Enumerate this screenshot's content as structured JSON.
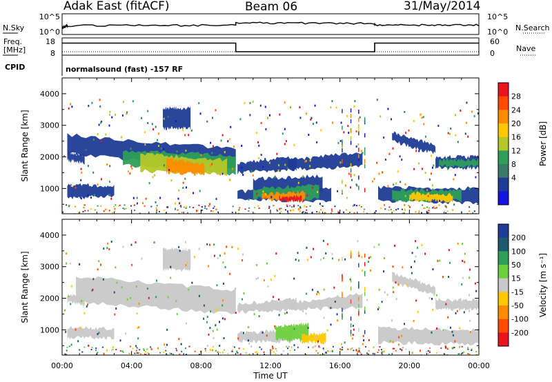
{
  "header": {
    "radar_title": "Adak East (fitACF)",
    "beam": "Beam 06",
    "date": "31/May/2014"
  },
  "param_panels": {
    "nsky_label": "N.Sky",
    "nsearch_label": "N.Search",
    "noise_ticks": [
      "10^5",
      "10^0"
    ],
    "freq_label": "Freq.",
    "freq_unit": "[MHz]",
    "freq_ticks": [
      "18",
      "8"
    ],
    "nave_label": "Nave",
    "nave_ticks": [
      "60",
      "0"
    ],
    "cpid_label": "CPID",
    "cpid_text": "normalsound (fast) -157 RF"
  },
  "time_axis": {
    "ticks": [
      "00:00",
      "04:00",
      "08:00",
      "12:00",
      "16:00",
      "20:00",
      "00:00"
    ],
    "label": "Time UT"
  },
  "power_colorbar": {
    "label": "Power [dB]",
    "ticks": [
      "28",
      "24",
      "20",
      "16",
      "12",
      "8",
      "4"
    ],
    "colors": [
      "#e8141e",
      "#ff4a00",
      "#ff8c00",
      "#ffc800",
      "#b4c828",
      "#2e9e58",
      "#3a7a6a",
      "#1e3c96",
      "#1414e0"
    ]
  },
  "velocity_colorbar": {
    "label": "Velocity [m s⁻¹]",
    "ticks": [
      "200",
      "100",
      "50",
      "15",
      "-15",
      "-50",
      "-100",
      "-200"
    ],
    "colors": [
      "#1e3c96",
      "#1e5a6e",
      "#2e9e58",
      "#6ecf3c",
      "#c8c8c8",
      "#ffc800",
      "#ff8c00",
      "#ff4a00",
      "#e8141e"
    ]
  },
  "chart_data": [
    {
      "type": "heatmap",
      "name": "power",
      "xlabel": "Time UT",
      "ylabel": "Slant Range [km]",
      "x_unit": "hours UT",
      "xlim": [
        0,
        24
      ],
      "ylim": [
        200,
        4500
      ],
      "yticks": [
        "4000",
        "3000",
        "2000",
        "1000"
      ],
      "bands": [
        {
          "t": [
            0.3,
            10.0
          ],
          "r0": [
            2300,
            1850
          ],
          "r1": [
            2700,
            2250
          ],
          "r0e": [
            2100,
            1600
          ],
          "r1e": [
            2400,
            2200
          ],
          "c": "#1e3c96"
        },
        {
          "t": [
            3.5,
            10.0
          ],
          "r0": [
            1950,
            1700
          ],
          "r1": [
            2200,
            2050
          ],
          "r0e": [
            1750,
            1450
          ],
          "r1e": [
            2050,
            1950
          ],
          "c": "#2e9e58"
        },
        {
          "t": [
            4.5,
            9.5
          ],
          "r0": [
            1900,
            1650
          ],
          "r1": [
            2100,
            1900
          ],
          "r0e": [
            1550,
            1450
          ],
          "r1e": [
            1750,
            1700
          ],
          "c": "#b4c828"
        },
        {
          "t": [
            6.0,
            8.2
          ],
          "r0": [
            1800,
            1600
          ],
          "r1": [
            1950,
            1750
          ],
          "r0e": [
            1500,
            1450
          ],
          "r1e": [
            1650,
            1600
          ],
          "c": "#ff8c00"
        },
        {
          "t": [
            0.3,
            1.3
          ],
          "r0": [
            1900,
            1800
          ],
          "r1": [
            2150,
            2050
          ],
          "r0e": [
            1900,
            1800
          ],
          "r1e": [
            2150,
            2050
          ],
          "c": "#1e3c96"
        },
        {
          "t": [
            0.3,
            3.0
          ],
          "r0": [
            700,
            750
          ],
          "r1": [
            1100,
            1100
          ],
          "r0e": [
            700,
            750
          ],
          "r1e": [
            1100,
            1100
          ],
          "c": "#1e3c96"
        },
        {
          "t": [
            10.1,
            15.5
          ],
          "r0": [
            650,
            600
          ],
          "r1": [
            900,
            1000
          ],
          "r0e": [
            650,
            600
          ],
          "r1e": [
            900,
            1000
          ],
          "c": "#1e3c96"
        },
        {
          "t": [
            11.0,
            15.0
          ],
          "r0": [
            900,
            900
          ],
          "r1": [
            1300,
            1400
          ],
          "r0e": [
            900,
            900
          ],
          "r1e": [
            1150,
            1000
          ],
          "c": "#1e3c96"
        },
        {
          "t": [
            11.0,
            14.8
          ],
          "r0": [
            700,
            650
          ],
          "r1": [
            1000,
            1100
          ],
          "r0e": [
            700,
            650
          ],
          "r1e": [
            900,
            950
          ],
          "c": "#2e9e58"
        },
        {
          "t": [
            11.5,
            14.0
          ],
          "r0": [
            650,
            620
          ],
          "r1": [
            820,
            900
          ],
          "r0e": [
            650,
            620
          ],
          "r1e": [
            820,
            900
          ],
          "c": "#ff8c00"
        },
        {
          "t": [
            12.5,
            13.8
          ],
          "r0": [
            620,
            600
          ],
          "r1": [
            720,
            760
          ],
          "r0e": [
            620,
            600
          ],
          "r1e": [
            720,
            760
          ],
          "c": "#e8141e"
        },
        {
          "t": [
            10.1,
            13.5
          ],
          "r0": [
            1500,
            1600
          ],
          "r1": [
            1800,
            2000
          ],
          "r0e": [
            1500,
            1600
          ],
          "r1e": [
            1800,
            2000
          ],
          "c": "#1e3c96"
        },
        {
          "t": [
            13.0,
            17.3
          ],
          "r0": [
            1600,
            1700
          ],
          "r1": [
            1900,
            2150
          ],
          "r0e": [
            1600,
            1700
          ],
          "r1e": [
            1900,
            2150
          ],
          "c": "#1e3c96"
        },
        {
          "t": [
            18.2,
            24.0
          ],
          "r0": [
            600,
            550
          ],
          "r1": [
            1050,
            1000
          ],
          "r0e": [
            600,
            550
          ],
          "r1e": [
            1050,
            1000
          ],
          "c": "#1e3c96"
        },
        {
          "t": [
            19.0,
            23.0
          ],
          "r0": [
            650,
            600
          ],
          "r1": [
            950,
            950
          ],
          "r0e": [
            650,
            600
          ],
          "r1e": [
            950,
            950
          ],
          "c": "#2e9e58"
        },
        {
          "t": [
            20.0,
            22.5
          ],
          "r0": [
            650,
            600
          ],
          "r1": [
            850,
            800
          ],
          "r0e": [
            650,
            600
          ],
          "r1e": [
            850,
            800
          ],
          "c": "#ffc800"
        },
        {
          "t": [
            19.0,
            21.5
          ],
          "r0": [
            2500,
            2100
          ],
          "r1": [
            2800,
            2350
          ],
          "r0e": [
            2500,
            2100
          ],
          "r1e": [
            2800,
            2350
          ],
          "c": "#1e3c96"
        },
        {
          "t": [
            21.5,
            24.0
          ],
          "r0": [
            1650,
            1650
          ],
          "r1": [
            2000,
            2000
          ],
          "r0e": [
            1650,
            1650
          ],
          "r1e": [
            2000,
            2000
          ],
          "c": "#1e3c96"
        },
        {
          "t": [
            21.7,
            24.0
          ],
          "r0": [
            1700,
            1700
          ],
          "r1": [
            1900,
            1900
          ],
          "r0e": [
            1700,
            1700
          ],
          "r1e": [
            1900,
            1900
          ],
          "c": "#2e9e58"
        },
        {
          "t": [
            5.8,
            7.4
          ],
          "r0": [
            3100,
            3100
          ],
          "r1": [
            3550,
            3550
          ],
          "r0e": [
            2900,
            2900
          ],
          "r1e": [
            3350,
            3350
          ],
          "c": "#1e3c96"
        }
      ]
    },
    {
      "type": "heatmap",
      "name": "velocity",
      "xlabel": "Time UT",
      "ylabel": "Slant Range [km]",
      "x_unit": "hours UT",
      "xlim": [
        0,
        24
      ],
      "ylim": [
        200,
        4500
      ],
      "yticks": [
        "4000",
        "3000",
        "2000",
        "1000"
      ],
      "bands": [
        {
          "t": [
            0.8,
            10.0
          ],
          "r0": [
            2300,
            1850
          ],
          "r1": [
            2700,
            2250
          ],
          "r0e": [
            1900,
            1500
          ],
          "r1e": [
            2400,
            2200
          ],
          "c": "#c8c8c8"
        },
        {
          "t": [
            0.3,
            1.3
          ],
          "r0": [
            1900,
            1800
          ],
          "r1": [
            2100,
            2050
          ],
          "r0e": [
            1900,
            1800
          ],
          "r1e": [
            2100,
            2050
          ],
          "c": "#c8c8c8"
        },
        {
          "t": [
            0.3,
            3.0
          ],
          "r0": [
            750,
            750
          ],
          "r1": [
            1050,
            1050
          ],
          "r0e": [
            750,
            750
          ],
          "r1e": [
            1050,
            1050
          ],
          "c": "#c8c8c8"
        },
        {
          "t": [
            10.1,
            13.2
          ],
          "r0": [
            650,
            600
          ],
          "r1": [
            900,
            1000
          ],
          "r0e": [
            650,
            600
          ],
          "r1e": [
            900,
            1000
          ],
          "c": "#c8c8c8"
        },
        {
          "t": [
            12.3,
            14.2
          ],
          "r0": [
            700,
            650
          ],
          "r1": [
            1100,
            1200
          ],
          "r0e": [
            700,
            650
          ],
          "r1e": [
            1100,
            1200
          ],
          "c": "#6ecf3c"
        },
        {
          "t": [
            13.8,
            15.2
          ],
          "r0": [
            600,
            600
          ],
          "r1": [
            850,
            900
          ],
          "r0e": [
            600,
            600
          ],
          "r1e": [
            850,
            900
          ],
          "c": "#ffc800"
        },
        {
          "t": [
            10.1,
            13.5
          ],
          "r0": [
            1550,
            1650
          ],
          "r1": [
            1800,
            2000
          ],
          "r0e": [
            1550,
            1650
          ],
          "r1e": [
            1800,
            2000
          ],
          "c": "#c8c8c8"
        },
        {
          "t": [
            13.0,
            17.3
          ],
          "r0": [
            1650,
            1700
          ],
          "r1": [
            1850,
            2150
          ],
          "r0e": [
            1650,
            1700
          ],
          "r1e": [
            1850,
            2150
          ],
          "c": "#c8c8c8"
        },
        {
          "t": [
            18.2,
            24.0
          ],
          "r0": [
            600,
            550
          ],
          "r1": [
            1050,
            1000
          ],
          "r0e": [
            600,
            550
          ],
          "r1e": [
            1050,
            1000
          ],
          "c": "#c8c8c8"
        },
        {
          "t": [
            19.0,
            21.5
          ],
          "r0": [
            2500,
            2100
          ],
          "r1": [
            2800,
            2350
          ],
          "r0e": [
            2500,
            2100
          ],
          "r1e": [
            2800,
            2350
          ],
          "c": "#c8c8c8"
        },
        {
          "t": [
            21.5,
            24.0
          ],
          "r0": [
            1650,
            1650
          ],
          "r1": [
            1950,
            1950
          ],
          "r0e": [
            1650,
            1650
          ],
          "r1e": [
            1950,
            1950
          ],
          "c": "#c8c8c8"
        },
        {
          "t": [
            5.8,
            7.4
          ],
          "r0": [
            3100,
            3100
          ],
          "r1": [
            3550,
            3550
          ],
          "r0e": [
            2900,
            2900
          ],
          "r1e": [
            3350,
            3350
          ],
          "c": "#c8c8c8"
        }
      ]
    },
    {
      "type": "line",
      "name": "transmit-frequency",
      "x_unit": "hours UT",
      "y_unit": "MHz",
      "ylim": [
        8,
        18
      ],
      "x": [
        0,
        10,
        10,
        18,
        18,
        24
      ],
      "y": [
        15,
        15,
        10,
        10,
        15,
        15
      ]
    },
    {
      "type": "line",
      "name": "sky-noise",
      "x_unit": "hours UT",
      "y_scale": "log",
      "ylim": [
        1,
        100000
      ],
      "x": [
        0,
        0.3,
        10,
        10,
        18,
        18,
        24
      ],
      "y": [
        20,
        100,
        130,
        800,
        500,
        150,
        150
      ]
    }
  ]
}
